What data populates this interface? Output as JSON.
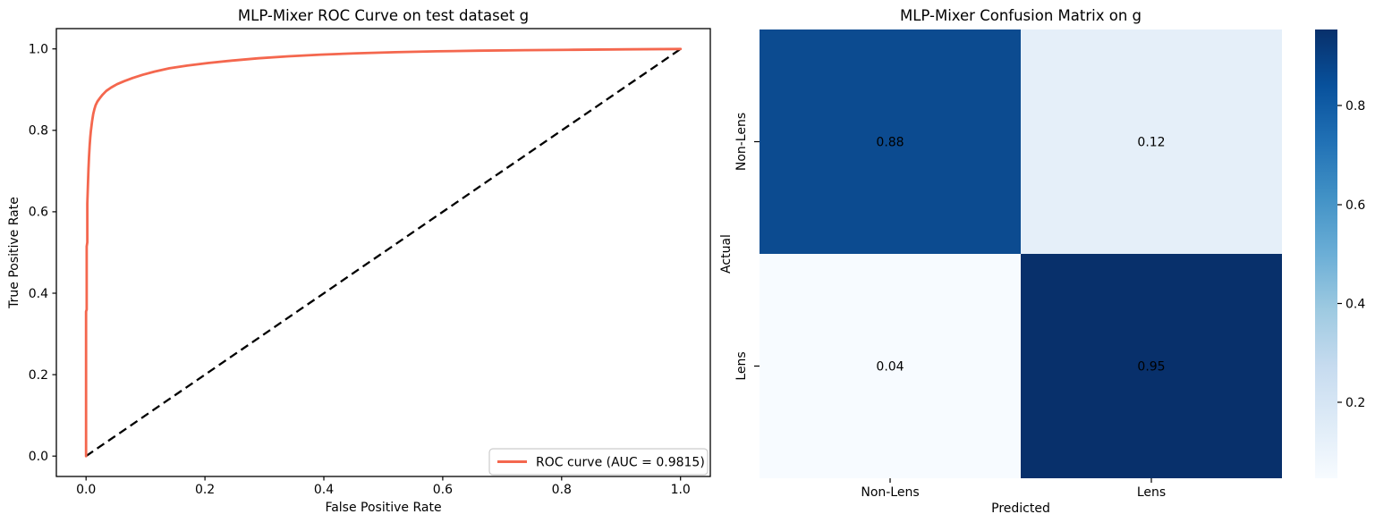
{
  "figure": {
    "background": "#ffffff"
  },
  "chart_data": [
    {
      "type": "line",
      "title": "MLP-Mixer ROC Curve on test dataset g",
      "xlabel": "False Positive Rate",
      "ylabel": "True Positive Rate",
      "xlim": [
        0,
        1
      ],
      "ylim": [
        0,
        1
      ],
      "axis_margin": 0.05,
      "grid": false,
      "xticks": [
        "0.0",
        "0.2",
        "0.4",
        "0.6",
        "0.8",
        "1.0"
      ],
      "yticks": [
        "0.0",
        "0.2",
        "0.4",
        "0.6",
        "0.8",
        "1.0"
      ],
      "legend": {
        "position": "lower right",
        "label": "ROC curve (AUC = 0.9815)"
      },
      "auc": 0.9815,
      "series": [
        {
          "name": "ROC curve",
          "color": "#f4674e",
          "style": "solid",
          "width": 2.8,
          "points": [
            [
              0,
              0
            ],
            [
              0,
              0.355
            ],
            [
              0.001,
              0.36
            ],
            [
              0.001,
              0.515
            ],
            [
              0.002,
              0.525
            ],
            [
              0.002,
              0.62
            ],
            [
              0.003,
              0.66
            ],
            [
              0.004,
              0.705
            ],
            [
              0.005,
              0.735
            ],
            [
              0.006,
              0.762
            ],
            [
              0.007,
              0.783
            ],
            [
              0.008,
              0.797
            ],
            [
              0.01,
              0.822
            ],
            [
              0.012,
              0.84
            ],
            [
              0.014,
              0.852
            ],
            [
              0.016,
              0.862
            ],
            [
              0.019,
              0.871
            ],
            [
              0.023,
              0.879
            ],
            [
              0.028,
              0.888
            ],
            [
              0.034,
              0.897
            ],
            [
              0.042,
              0.905
            ],
            [
              0.052,
              0.9135
            ],
            [
              0.064,
              0.921
            ],
            [
              0.078,
              0.9285
            ],
            [
              0.095,
              0.9365
            ],
            [
              0.115,
              0.9445
            ],
            [
              0.14,
              0.9525
            ],
            [
              0.17,
              0.959
            ],
            [
              0.205,
              0.9655
            ],
            [
              0.245,
              0.9715
            ],
            [
              0.29,
              0.977
            ],
            [
              0.34,
              0.982
            ],
            [
              0.395,
              0.986
            ],
            [
              0.455,
              0.9895
            ],
            [
              0.52,
              0.992
            ],
            [
              0.59,
              0.9943
            ],
            [
              0.66,
              0.9958
            ],
            [
              0.74,
              0.997
            ],
            [
              0.82,
              0.998
            ],
            [
              0.91,
              0.999
            ],
            [
              1,
              1
            ]
          ]
        },
        {
          "name": "chance diagonal",
          "color": "#000000",
          "style": "dashed",
          "width": 2.3,
          "points": [
            [
              0,
              0
            ],
            [
              1,
              1
            ]
          ]
        }
      ]
    },
    {
      "type": "heatmap",
      "title": "MLP-Mixer Confusion Matrix on g",
      "xlabel": "Predicted",
      "ylabel": "Actual",
      "x_categories": [
        "Non-Lens",
        "Lens"
      ],
      "y_categories": [
        "Non-Lens",
        "Lens"
      ],
      "values": [
        [
          0.88,
          0.12
        ],
        [
          0.04,
          0.95
        ]
      ],
      "cell_labels": [
        [
          "0.88",
          "0.12"
        ],
        [
          "0.04",
          "0.95"
        ]
      ],
      "cell_colors": [
        [
          "#0c4b90",
          "#e5eff9"
        ],
        [
          "#f7fbff",
          "#08306b"
        ]
      ],
      "cell_text_colors": [
        [
          "#ffffff",
          "#262626"
        ],
        [
          "#262626",
          "#ffffff"
        ]
      ],
      "colormap": "Blues",
      "colorbar": {
        "vmin": 0.04,
        "vmax": 0.95,
        "ticks": [
          "0.2",
          "0.4",
          "0.6",
          "0.8"
        ],
        "stops": [
          "#f7fbff",
          "#deebf7",
          "#c6dbef",
          "#9ecae1",
          "#6baed6",
          "#4292c6",
          "#2171b5",
          "#08519c",
          "#08306b"
        ]
      }
    }
  ]
}
